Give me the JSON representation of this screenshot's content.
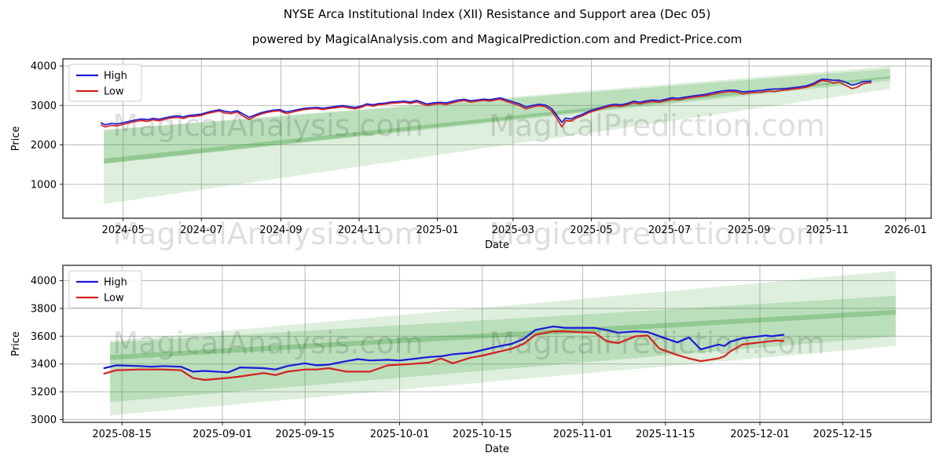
{
  "title": "NYSE Arca Institutional Index (XII) Resistance and Support area (Dec 05)",
  "subtitle": "powered by MagicalAnalysis.com and MagicalPrediction.com and Predict-Price.com",
  "watermarks": {
    "analysis": "MagicalAnalysis.com",
    "prediction": "MagicalPrediction.com"
  },
  "colors": {
    "high_line": "#1a1ad9",
    "low_line": "#d62020",
    "band_green": "#339933",
    "grid": "#b3b3b3",
    "frame": "#262626"
  },
  "chart_data": [
    {
      "type": "line",
      "xlabel": "Date",
      "ylabel": "Price",
      "grid": true,
      "legend": {
        "position": "upper left",
        "entries": [
          "High",
          "Low"
        ]
      },
      "x_domain": [
        "2024-03-15",
        "2026-01-21"
      ],
      "y_domain": [
        140,
        4180
      ],
      "y_ticks": [
        1000,
        2000,
        3000,
        4000
      ],
      "x_ticks": [
        {
          "d": "2024-05-01",
          "label": "2024-05"
        },
        {
          "d": "2024-07-01",
          "label": "2024-07"
        },
        {
          "d": "2024-09-01",
          "label": "2024-09"
        },
        {
          "d": "2024-11-01",
          "label": "2024-11"
        },
        {
          "d": "2025-01-01",
          "label": "2025-01"
        },
        {
          "d": "2025-03-01",
          "label": "2025-03"
        },
        {
          "d": "2025-05-01",
          "label": "2025-05"
        },
        {
          "d": "2025-07-01",
          "label": "2025-07"
        },
        {
          "d": "2025-09-01",
          "label": "2025-09"
        },
        {
          "d": "2025-11-01",
          "label": "2025-11"
        },
        {
          "d": "2026-01-01",
          "label": "2026-01"
        }
      ],
      "bands": [
        {
          "start": "2024-04-16",
          "end": "2025-12-20",
          "top": [
            2380,
            3990
          ],
          "bottom": [
            500,
            3420
          ],
          "opacity": 0.16
        },
        {
          "start": "2024-04-16",
          "end": "2025-12-20",
          "top": [
            2370,
            3930
          ],
          "bottom": [
            1520,
            3630
          ],
          "opacity": 0.2
        },
        {
          "start": "2024-04-16",
          "end": "2025-12-20",
          "top": [
            1650,
            3740
          ],
          "bottom": [
            1530,
            3690
          ],
          "opacity": 0.3
        }
      ],
      "dates": [
        "2024-04-14",
        "2024-04-17",
        "2024-04-22",
        "2024-04-26",
        "2024-05-01",
        "2024-05-06",
        "2024-05-10",
        "2024-05-15",
        "2024-05-20",
        "2024-05-24",
        "2024-05-29",
        "2024-06-03",
        "2024-06-07",
        "2024-06-12",
        "2024-06-17",
        "2024-06-21",
        "2024-06-26",
        "2024-07-01",
        "2024-07-05",
        "2024-07-10",
        "2024-07-15",
        "2024-07-19",
        "2024-07-24",
        "2024-07-29",
        "2024-08-02",
        "2024-08-07",
        "2024-08-12",
        "2024-08-16",
        "2024-08-21",
        "2024-08-26",
        "2024-08-31",
        "2024-09-05",
        "2024-09-10",
        "2024-09-14",
        "2024-09-19",
        "2024-09-24",
        "2024-09-29",
        "2024-10-04",
        "2024-10-09",
        "2024-10-14",
        "2024-10-19",
        "2024-10-24",
        "2024-10-29",
        "2024-11-03",
        "2024-11-07",
        "2024-11-12",
        "2024-11-16",
        "2024-11-21",
        "2024-11-26",
        "2024-12-01",
        "2024-12-06",
        "2024-12-11",
        "2024-12-16",
        "2024-12-20",
        "2024-12-24",
        "2024-12-29",
        "2025-01-03",
        "2025-01-08",
        "2025-01-13",
        "2025-01-17",
        "2025-01-22",
        "2025-01-27",
        "2025-02-01",
        "2025-02-06",
        "2025-02-11",
        "2025-02-16",
        "2025-02-19",
        "2025-02-24",
        "2025-03-01",
        "2025-03-06",
        "2025-03-11",
        "2025-03-16",
        "2025-03-21",
        "2025-03-26",
        "2025-03-31",
        "2025-04-04",
        "2025-04-08",
        "2025-04-11",
        "2025-04-15",
        "2025-04-19",
        "2025-04-24",
        "2025-04-29",
        "2025-05-04",
        "2025-05-09",
        "2025-05-14",
        "2025-05-19",
        "2025-05-24",
        "2025-05-29",
        "2025-06-03",
        "2025-06-08",
        "2025-06-13",
        "2025-06-18",
        "2025-06-23",
        "2025-06-28",
        "2025-07-03",
        "2025-07-08",
        "2025-07-13",
        "2025-07-18",
        "2025-07-23",
        "2025-07-28",
        "2025-08-02",
        "2025-08-07",
        "2025-08-12",
        "2025-08-17",
        "2025-08-22",
        "2025-08-27",
        "2025-09-01",
        "2025-09-06",
        "2025-09-11",
        "2025-09-16",
        "2025-09-21",
        "2025-09-26",
        "2025-10-01",
        "2025-10-06",
        "2025-10-11",
        "2025-10-16",
        "2025-10-21",
        "2025-10-26",
        "2025-10-28",
        "2025-11-02",
        "2025-11-06",
        "2025-11-10",
        "2025-11-14",
        "2025-11-18",
        "2025-11-20",
        "2025-11-24",
        "2025-11-28",
        "2025-12-02",
        "2025-12-05"
      ],
      "series": [
        {
          "name": "High",
          "color": "#1a1ad9",
          "values": [
            2555,
            2510,
            2545,
            2530,
            2560,
            2600,
            2625,
            2655,
            2640,
            2670,
            2650,
            2690,
            2715,
            2735,
            2710,
            2745,
            2760,
            2780,
            2820,
            2860,
            2890,
            2855,
            2830,
            2865,
            2790,
            2700,
            2760,
            2810,
            2850,
            2880,
            2895,
            2835,
            2865,
            2895,
            2925,
            2940,
            2950,
            2930,
            2955,
            2975,
            2995,
            2970,
            2950,
            2985,
            3040,
            3015,
            3045,
            3060,
            3085,
            3095,
            3110,
            3085,
            3125,
            3080,
            3035,
            3065,
            3080,
            3065,
            3105,
            3135,
            3155,
            3120,
            3140,
            3160,
            3145,
            3175,
            3190,
            3140,
            3090,
            3040,
            2960,
            3000,
            3030,
            3010,
            2920,
            2750,
            2570,
            2680,
            2655,
            2715,
            2770,
            2850,
            2905,
            2950,
            3000,
            3030,
            3015,
            3050,
            3105,
            3080,
            3115,
            3135,
            3120,
            3155,
            3195,
            3180,
            3210,
            3235,
            3255,
            3275,
            3310,
            3345,
            3370,
            3385,
            3380,
            3345,
            3355,
            3370,
            3380,
            3405,
            3415,
            3420,
            3430,
            3450,
            3470,
            3500,
            3555,
            3640,
            3665,
            3655,
            3635,
            3640,
            3605,
            3550,
            3515,
            3545,
            3595,
            3610,
            3615
          ]
        },
        {
          "name": "Low",
          "color": "#d62020",
          "values": [
            2505,
            2455,
            2495,
            2480,
            2520,
            2560,
            2590,
            2620,
            2595,
            2635,
            2610,
            2655,
            2680,
            2700,
            2670,
            2715,
            2725,
            2745,
            2790,
            2825,
            2855,
            2810,
            2790,
            2830,
            2740,
            2645,
            2725,
            2775,
            2820,
            2850,
            2860,
            2795,
            2830,
            2860,
            2895,
            2910,
            2920,
            2895,
            2925,
            2945,
            2965,
            2935,
            2915,
            2955,
            3010,
            2980,
            3015,
            3030,
            3055,
            3065,
            3080,
            3050,
            3090,
            3040,
            2995,
            3030,
            3045,
            3025,
            3070,
            3100,
            3125,
            3085,
            3110,
            3130,
            3110,
            3145,
            3160,
            3100,
            3050,
            2995,
            2910,
            2960,
            2995,
            2970,
            2860,
            2680,
            2455,
            2615,
            2600,
            2675,
            2735,
            2815,
            2870,
            2915,
            2965,
            2995,
            2975,
            3015,
            3070,
            3040,
            3080,
            3100,
            3080,
            3120,
            3160,
            3140,
            3175,
            3200,
            3220,
            3240,
            3270,
            3305,
            3330,
            3350,
            3345,
            3290,
            3315,
            3330,
            3335,
            3360,
            3350,
            3380,
            3395,
            3415,
            3435,
            3465,
            3520,
            3605,
            3630,
            3610,
            3565,
            3600,
            3525,
            3465,
            3425,
            3455,
            3535,
            3570,
            3575
          ]
        }
      ]
    },
    {
      "type": "line",
      "xlabel": "Date",
      "ylabel": "Price",
      "grid": true,
      "legend": {
        "position": "upper left",
        "entries": [
          "High",
          "Low"
        ]
      },
      "x_domain": [
        "2025-08-05",
        "2025-12-30"
      ],
      "y_domain": [
        2980,
        4110
      ],
      "y_ticks": [
        3000,
        3200,
        3400,
        3600,
        3800,
        4000
      ],
      "x_ticks": [
        {
          "d": "2025-08-15",
          "label": "2025-08-15"
        },
        {
          "d": "2025-09-01",
          "label": "2025-09-01"
        },
        {
          "d": "2025-09-15",
          "label": "2025-09-15"
        },
        {
          "d": "2025-10-01",
          "label": "2025-10-01"
        },
        {
          "d": "2025-10-15",
          "label": "2025-10-15"
        },
        {
          "d": "2025-11-01",
          "label": "2025-11-01"
        },
        {
          "d": "2025-11-15",
          "label": "2025-11-15"
        },
        {
          "d": "2025-12-01",
          "label": "2025-12-01"
        },
        {
          "d": "2025-12-15",
          "label": "2025-12-15"
        }
      ],
      "bands": [
        {
          "start": "2025-08-13",
          "end": "2025-12-24",
          "top": [
            3565,
            4070
          ],
          "bottom": [
            3030,
            3530
          ],
          "opacity": 0.16
        },
        {
          "start": "2025-08-13",
          "end": "2025-12-24",
          "top": [
            3555,
            3890
          ],
          "bottom": [
            3125,
            3600
          ],
          "opacity": 0.2
        },
        {
          "start": "2025-08-13",
          "end": "2025-12-24",
          "top": [
            3465,
            3790
          ],
          "bottom": [
            3430,
            3755
          ],
          "opacity": 0.3
        }
      ],
      "dates": [
        "2025-08-12",
        "2025-08-14",
        "2025-08-18",
        "2025-08-20",
        "2025-08-22",
        "2025-08-25",
        "2025-08-27",
        "2025-08-29",
        "2025-09-02",
        "2025-09-04",
        "2025-09-08",
        "2025-09-10",
        "2025-09-12",
        "2025-09-15",
        "2025-09-17",
        "2025-09-19",
        "2025-09-22",
        "2025-09-24",
        "2025-09-26",
        "2025-09-29",
        "2025-10-01",
        "2025-10-03",
        "2025-10-06",
        "2025-10-08",
        "2025-10-10",
        "2025-10-13",
        "2025-10-15",
        "2025-10-17",
        "2025-10-20",
        "2025-10-22",
        "2025-10-24",
        "2025-10-27",
        "2025-10-29",
        "2025-10-31",
        "2025-11-03",
        "2025-11-05",
        "2025-11-07",
        "2025-11-10",
        "2025-11-12",
        "2025-11-14",
        "2025-11-17",
        "2025-11-19",
        "2025-11-21",
        "2025-11-24",
        "2025-11-25",
        "2025-11-26",
        "2025-11-28",
        "2025-12-01",
        "2025-12-02",
        "2025-12-03",
        "2025-12-04",
        "2025-12-05"
      ],
      "series": [
        {
          "name": "High",
          "color": "#1a1ad9",
          "values": [
            3370,
            3390,
            3385,
            3380,
            3385,
            3380,
            3345,
            3350,
            3340,
            3375,
            3370,
            3360,
            3385,
            3405,
            3390,
            3395,
            3420,
            3435,
            3425,
            3430,
            3425,
            3435,
            3450,
            3455,
            3470,
            3480,
            3500,
            3520,
            3545,
            3580,
            3645,
            3670,
            3660,
            3660,
            3660,
            3645,
            3625,
            3635,
            3630,
            3600,
            3555,
            3590,
            3505,
            3540,
            3530,
            3560,
            3585,
            3600,
            3605,
            3600,
            3605,
            3610
          ]
        },
        {
          "name": "Low",
          "color": "#d62020",
          "values": [
            3330,
            3355,
            3360,
            3360,
            3360,
            3355,
            3300,
            3285,
            3300,
            3310,
            3335,
            3320,
            3345,
            3360,
            3360,
            3370,
            3345,
            3345,
            3345,
            3390,
            3395,
            3400,
            3410,
            3440,
            3405,
            3445,
            3460,
            3480,
            3510,
            3545,
            3610,
            3635,
            3635,
            3630,
            3625,
            3565,
            3550,
            3600,
            3605,
            3510,
            3465,
            3440,
            3420,
            3440,
            3455,
            3490,
            3540,
            3555,
            3560,
            3565,
            3570,
            3565
          ]
        }
      ]
    }
  ]
}
